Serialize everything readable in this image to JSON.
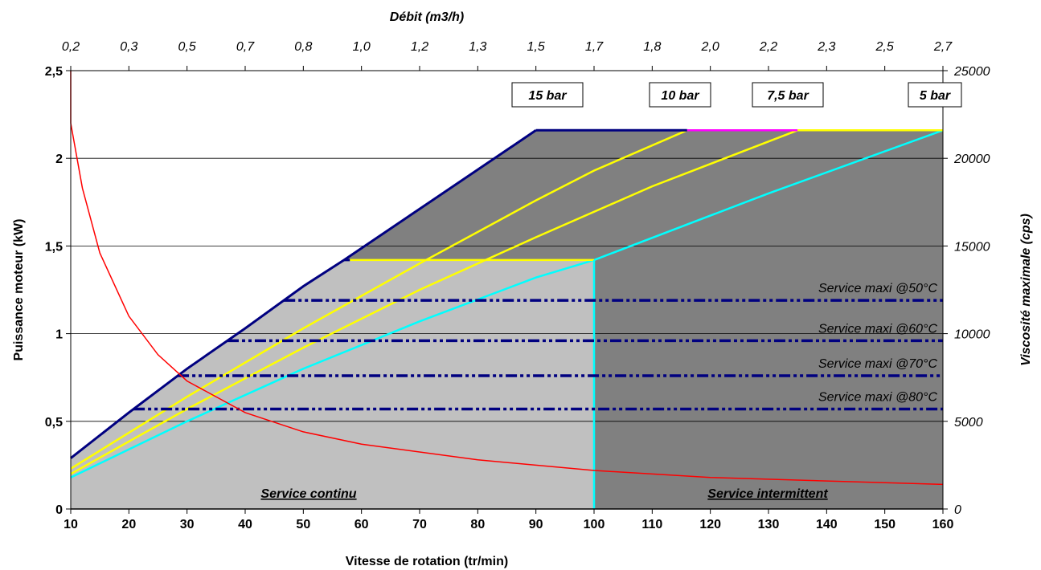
{
  "chart_data": {
    "type": "line",
    "title": "",
    "xlabel": "Vitesse de rotation (tr/min)",
    "x2label": "Débit (m3/h)",
    "ylabel": "Puissance moteur (kW)",
    "y2label": "Viscosité maximale (cps)",
    "xlim": [
      10,
      160
    ],
    "ylim": [
      0,
      2.5
    ],
    "y2lim": [
      0,
      25000
    ],
    "grid": "horizontal",
    "x_ticks": [
      "10",
      "20",
      "30",
      "40",
      "50",
      "60",
      "70",
      "80",
      "90",
      "100",
      "110",
      "120",
      "130",
      "140",
      "150",
      "160"
    ],
    "x_tick_values": [
      10,
      20,
      30,
      40,
      50,
      60,
      70,
      80,
      90,
      100,
      110,
      120,
      130,
      140,
      150,
      160
    ],
    "x2_ticks": [
      "0,2",
      "0,3",
      "0,5",
      "0,7",
      "0,8",
      "1,0",
      "1,2",
      "1,3",
      "1,5",
      "1,7",
      "1,8",
      "2,0",
      "2,2",
      "2,3",
      "2,5",
      "2,7"
    ],
    "y_ticks": [
      "0",
      "0,5",
      "1",
      "1,5",
      "2",
      "2,5"
    ],
    "y_tick_values": [
      0,
      0.5,
      1,
      1.5,
      2,
      2.5
    ],
    "y2_ticks": [
      "0",
      "5000",
      "10000",
      "15000",
      "20000",
      "25000"
    ],
    "colors": {
      "continuous_zone": "#c0c0c0",
      "intermittent_zone": "#808080",
      "envelope": "#000080",
      "p15": "#ff00ff",
      "p10": "#ffff00",
      "p75": "#ffff00",
      "p5": "#00ffff",
      "viscosity": "#ff0000",
      "service_lines": "#000080"
    },
    "zones": {
      "continuous": {
        "label": "Service continu",
        "x_max": 100,
        "y_max": 1.42
      },
      "intermittent": {
        "label": "Service intermittent",
        "y_max": 2.16
      }
    },
    "series": [
      {
        "key": "p15",
        "x": [
          10,
          20,
          30,
          40,
          50,
          57,
          90
        ],
        "y": [
          0.29,
          0.55,
          0.8,
          1.03,
          1.27,
          1.42,
          2.16
        ]
      },
      {
        "key": "p10",
        "x": [
          10,
          30,
          50,
          70,
          90,
          100,
          116
        ],
        "y": [
          0.23,
          0.64,
          1.03,
          1.4,
          1.76,
          1.93,
          2.16
        ]
      },
      {
        "key": "p75",
        "x": [
          10,
          30,
          50,
          70,
          90,
          110,
          135
        ],
        "y": [
          0.2,
          0.57,
          0.92,
          1.25,
          1.55,
          1.84,
          2.16
        ]
      },
      {
        "key": "p5",
        "x": [
          10,
          30,
          50,
          70,
          90,
          100,
          130,
          160
        ],
        "y": [
          0.18,
          0.5,
          0.8,
          1.07,
          1.32,
          1.42,
          1.8,
          2.16
        ]
      }
    ],
    "pressure_labels": [
      "15 bar",
      "10 bar",
      "7,5 bar",
      "5 bar"
    ],
    "viscosity_series": {
      "x": [
        10,
        12,
        15,
        20,
        25,
        30,
        40,
        50,
        60,
        80,
        100,
        120,
        140,
        160
      ],
      "y": [
        22000,
        18300,
        14600,
        11000,
        8800,
        7300,
        5500,
        4400,
        3700,
        2800,
        2200,
        1800,
        1600,
        1400
      ]
    },
    "service_lines": [
      {
        "label": "Service maxi @50°C",
        "y": 1.19
      },
      {
        "label": "Service maxi @60°C",
        "y": 0.96
      },
      {
        "label": "Service maxi @70°C",
        "y": 0.76
      },
      {
        "label": "Service maxi @80°C",
        "y": 0.57
      }
    ]
  }
}
